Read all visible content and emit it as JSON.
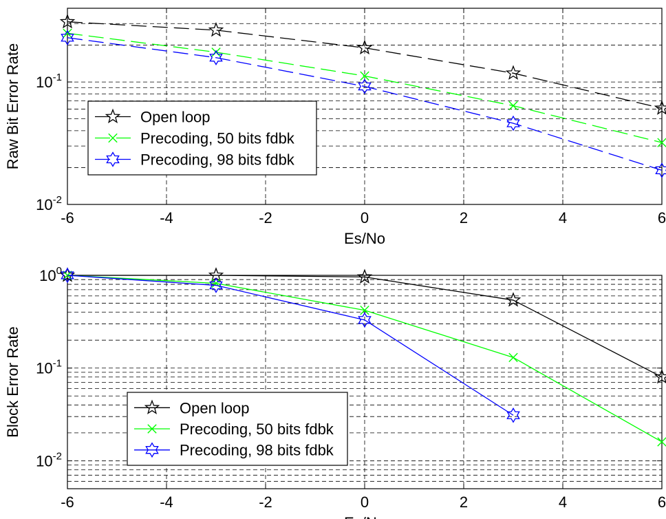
{
  "chart_data": [
    {
      "type": "line",
      "title": "",
      "xlabel": "Es/No",
      "ylabel": "Raw Bit Error Rate",
      "xlim": [
        -6,
        6
      ],
      "ylim": [
        0.01,
        0.4
      ],
      "yscale": "log",
      "grid": true,
      "legend_position": "lower-left",
      "xticks": [
        -6,
        -4,
        -2,
        0,
        2,
        4,
        6
      ],
      "xtick_labels": [
        "-6",
        "-4",
        "-2",
        "0",
        "2",
        "4",
        "6"
      ],
      "yticks": [
        0.1,
        0.01
      ],
      "ytick_labels": [
        {
          "base": "10",
          "exp": "-1"
        },
        {
          "base": "10",
          "exp": "-2"
        }
      ],
      "x": [
        -6,
        -3,
        0,
        3,
        6
      ],
      "series": [
        {
          "name": "Open loop",
          "color": "#000000",
          "marker": "star-icon",
          "line_style": "dashed",
          "values": [
            0.31,
            0.265,
            0.19,
            0.118,
            0.061
          ]
        },
        {
          "name": "Precoding, 50 bits fdbk",
          "color": "#00ff00",
          "marker": "x-icon",
          "line_style": "dashed",
          "values": [
            0.25,
            0.175,
            0.112,
            0.064,
            0.032
          ]
        },
        {
          "name": "Precoding, 98 bits fdbk",
          "color": "#0000ff",
          "marker": "hexagram-icon",
          "line_style": "dashed",
          "values": [
            0.23,
            0.158,
            0.092,
            0.046,
            0.019
          ]
        }
      ]
    },
    {
      "type": "line",
      "title": "",
      "xlabel": "Es/No",
      "ylabel": "Block Error Rate",
      "xlim": [
        -6,
        6
      ],
      "ylim": [
        0.005,
        1
      ],
      "yscale": "log",
      "grid": true,
      "legend_position": "lower-left",
      "xticks": [
        -6,
        -4,
        -2,
        0,
        2,
        4,
        6
      ],
      "xtick_labels": [
        "-6",
        "-4",
        "-2",
        "0",
        "2",
        "4",
        "6"
      ],
      "yticks": [
        1,
        0.1,
        0.01
      ],
      "ytick_labels": [
        {
          "base": "10",
          "exp": "0"
        },
        {
          "base": "10",
          "exp": "-1"
        },
        {
          "base": "10",
          "exp": "-2"
        }
      ],
      "series": [
        {
          "name": "Open loop",
          "color": "#000000",
          "marker": "star-icon",
          "line_style": "solid",
          "x": [
            -6,
            -3,
            0,
            3,
            6
          ],
          "values": [
            1.0,
            1.0,
            0.96,
            0.54,
            0.08
          ]
        },
        {
          "name": "Precoding, 50 bits fdbk",
          "color": "#00ff00",
          "marker": "x-icon",
          "line_style": "solid",
          "x": [
            -6,
            -3,
            0,
            3,
            6
          ],
          "values": [
            1.0,
            0.82,
            0.42,
            0.13,
            0.016
          ]
        },
        {
          "name": "Precoding, 98 bits fdbk",
          "color": "#0000ff",
          "marker": "hexagram-icon",
          "line_style": "solid",
          "x": [
            -6,
            -3,
            0,
            3
          ],
          "values": [
            1.0,
            0.78,
            0.33,
            0.031
          ]
        }
      ]
    }
  ]
}
